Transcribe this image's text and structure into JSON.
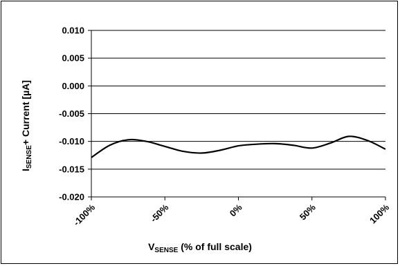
{
  "chart_data": {
    "type": "line",
    "x_tick_labels": [
      "-100%",
      "-50%",
      "0%",
      "50%",
      "100%"
    ],
    "y_tick_labels": [
      "0.010",
      "0.005",
      "0.000",
      "-0.005",
      "-0.010",
      "-0.015",
      "-0.020"
    ],
    "xlim": [
      -100,
      100
    ],
    "ylim": [
      -0.02,
      0.01
    ],
    "x_ticks": [
      -100,
      -50,
      0,
      50,
      100
    ],
    "y_ticks": [
      0.01,
      0.005,
      0.0,
      -0.005,
      -0.01,
      -0.015,
      -0.02
    ],
    "grid": "horizontal",
    "xlabel": {
      "prefix": "V",
      "sub": "SENSE",
      "rest": " (% of full scale)"
    },
    "ylabel": {
      "prefix": "I",
      "sub": "SENSE",
      "rest": "+ Current [µA]"
    },
    "series": [
      {
        "color": "#000000",
        "x": [
          -100,
          -87.5,
          -75,
          -62.5,
          -50,
          -37.5,
          -25,
          -12.5,
          0,
          12.5,
          25,
          37.5,
          50,
          62.5,
          75,
          87.5,
          100
        ],
        "y": [
          -0.0129,
          -0.0107,
          -0.0097,
          -0.01,
          -0.0109,
          -0.0118,
          -0.0121,
          -0.0116,
          -0.0108,
          -0.0105,
          -0.0104,
          -0.0107,
          -0.0112,
          -0.0103,
          -0.0091,
          -0.0098,
          -0.0114
        ]
      }
    ]
  }
}
